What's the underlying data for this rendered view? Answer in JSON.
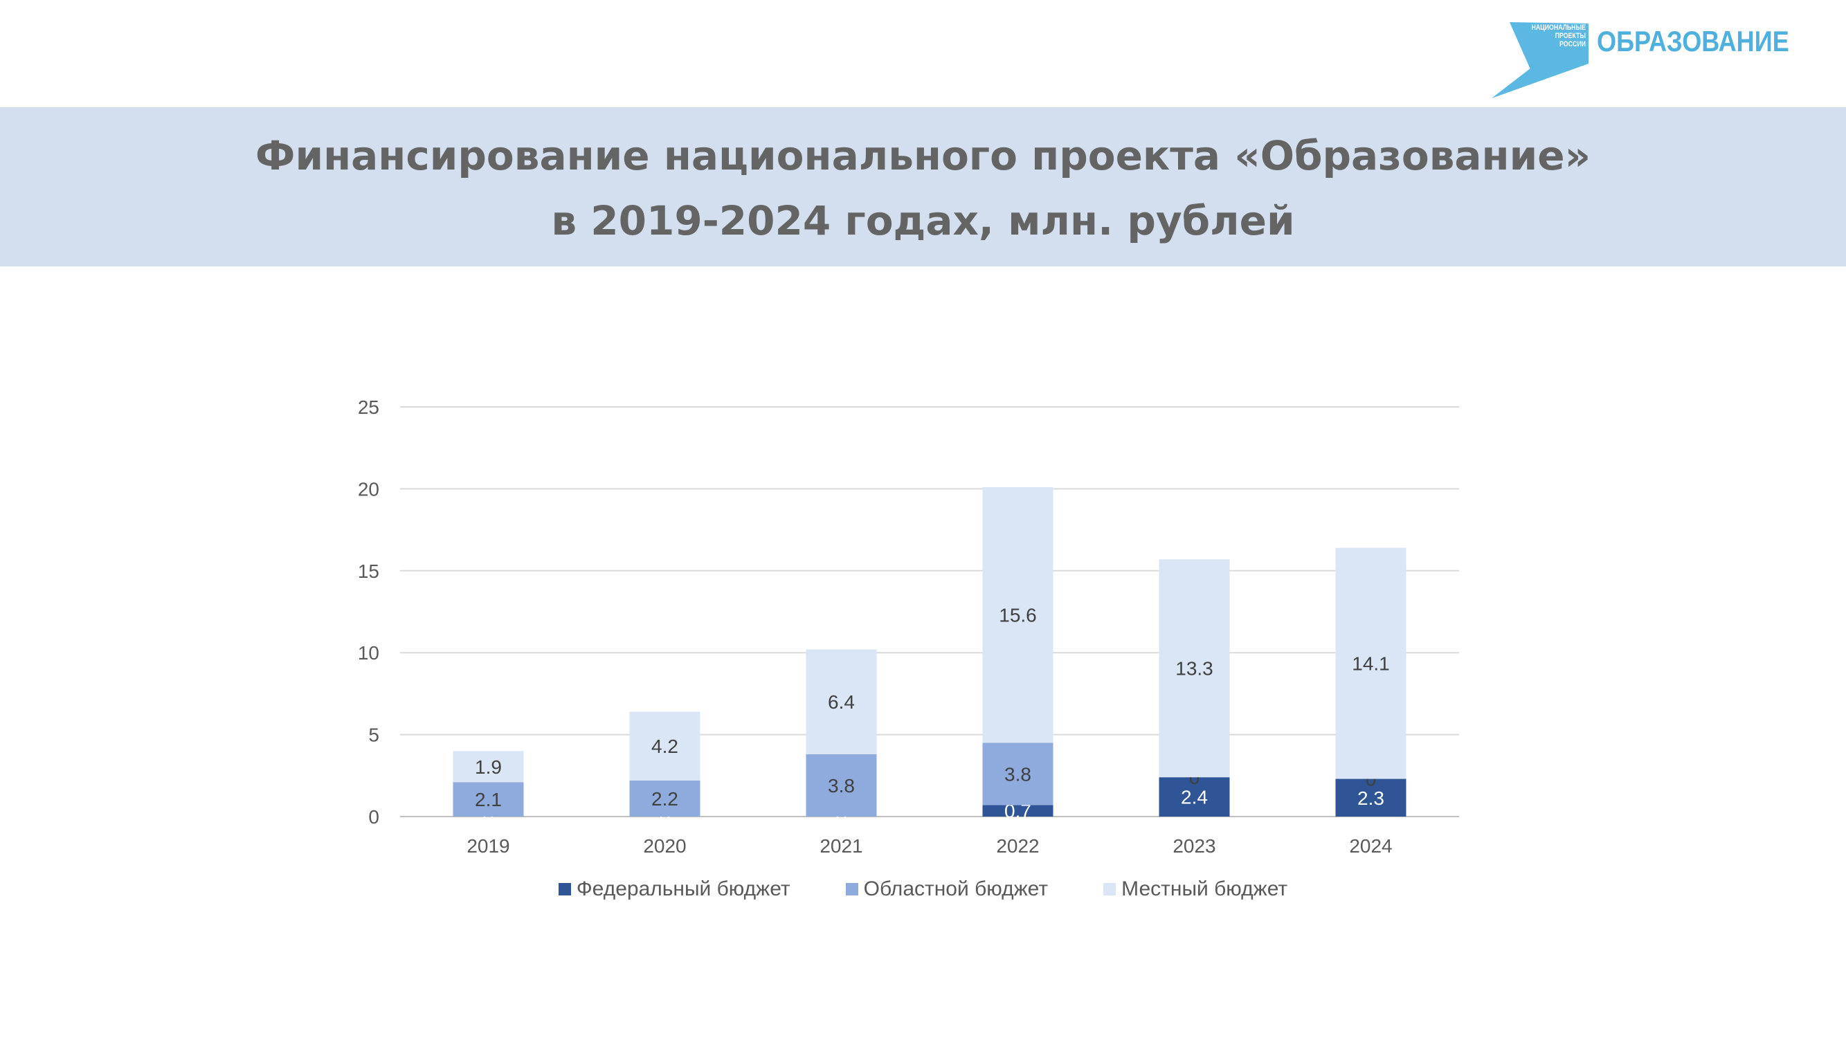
{
  "logo": {
    "small_text": [
      "НАЦИОНАЛЬНЫЕ",
      "ПРОЕКТЫ",
      "РОССИИ"
    ],
    "brand": "ОБРАЗОВАНИЕ"
  },
  "header": {
    "title_line1": "Финансирование национального проекта «Образование»",
    "title_line2": "в 2019-2024 годах, млн. рублей"
  },
  "colors": {
    "federal": "#2f5597",
    "regional": "#8faadc",
    "local": "#dae6f5",
    "band": "#d3deef",
    "logo": "#4fb0de"
  },
  "chart_data": {
    "type": "bar",
    "stacked": true,
    "categories": [
      "2019",
      "2020",
      "2021",
      "2022",
      "2023",
      "2024"
    ],
    "series": [
      {
        "name": "Федеральный бюджет",
        "values": [
          0,
          0,
          0,
          0.7,
          2.4,
          2.3
        ]
      },
      {
        "name": "Областной бюджет",
        "values": [
          2.1,
          2.2,
          3.8,
          3.8,
          0,
          0
        ]
      },
      {
        "name": "Местный бюджет",
        "values": [
          1.9,
          4.2,
          6.4,
          15.6,
          13.3,
          14.1
        ]
      }
    ],
    "ylim": [
      0,
      25
    ],
    "yticks": [
      0,
      5,
      10,
      15,
      20,
      25
    ],
    "grid": true,
    "legend_position": "bottom",
    "title": "",
    "xlabel": "",
    "ylabel": ""
  }
}
